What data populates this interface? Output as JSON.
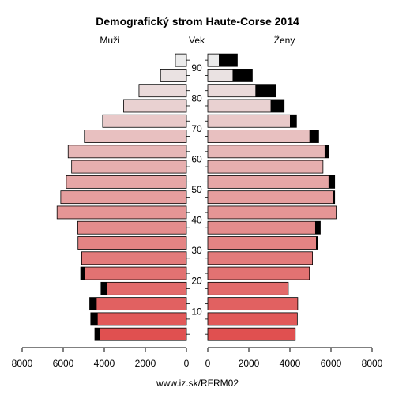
{
  "chart_data": {
    "type": "bar",
    "title": "Demografický strom Haute-Corse 2014",
    "left_label": "Muži",
    "center_label": "Vek",
    "right_label": "Ženy",
    "footer": "www.iz.sk/RFRM02",
    "xlim": [
      0,
      8000
    ],
    "x_ticks": [
      "8000",
      "6000",
      "4000",
      "2000",
      "0",
      "0",
      "2000",
      "4000",
      "6000",
      "8000"
    ],
    "y_ticks": [
      "10",
      "20",
      "30",
      "40",
      "50",
      "60",
      "70",
      "80",
      "90"
    ],
    "age_groups": [
      "0-4",
      "5-9",
      "10-14",
      "15-19",
      "20-24",
      "25-29",
      "30-34",
      "35-39",
      "40-44",
      "45-49",
      "50-54",
      "55-59",
      "60-64",
      "65-69",
      "70-74",
      "75-79",
      "80-84",
      "85-89",
      "90+"
    ],
    "series": [
      {
        "name": "Muži",
        "values": [
          4460,
          4660,
          4710,
          4160,
          5150,
          5100,
          5280,
          5290,
          6300,
          6120,
          5850,
          5590,
          5760,
          4970,
          4080,
          3060,
          2310,
          1260,
          540
        ],
        "surplus": [
          240,
          340,
          340,
          300,
          220,
          0,
          0,
          0,
          0,
          0,
          0,
          0,
          0,
          0,
          0,
          0,
          0,
          0,
          0
        ]
      },
      {
        "name": "Ženy",
        "values": [
          4260,
          4360,
          4380,
          3920,
          4950,
          5100,
          5350,
          5480,
          6250,
          6180,
          6180,
          5610,
          5870,
          5400,
          4320,
          3720,
          3300,
          2170,
          1440
        ],
        "surplus": [
          0,
          0,
          0,
          0,
          0,
          0,
          80,
          250,
          0,
          90,
          300,
          0,
          180,
          450,
          320,
          660,
          980,
          960,
          900
        ]
      }
    ],
    "colors": {
      "bar_young": "#e05050",
      "bar_old": "#ebebeb",
      "surplus": "#000000",
      "axis": "#000000"
    }
  }
}
